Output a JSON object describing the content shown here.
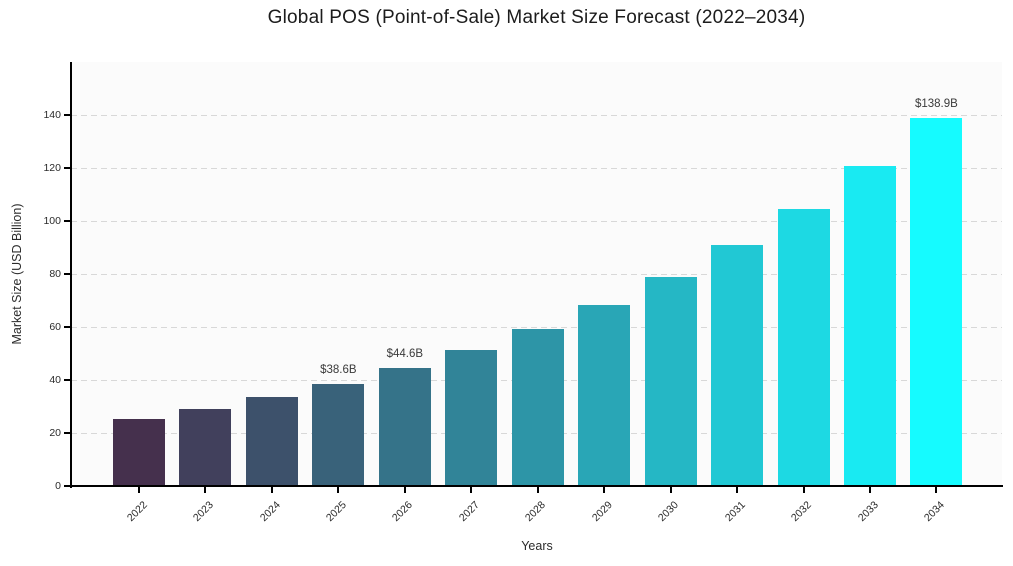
{
  "chart_data": {
    "type": "bar",
    "title": "Global POS (Point-of-Sale) Market Size Forecast (2022–2034)",
    "xlabel": "Years",
    "ylabel": "Market Size (USD Billion)",
    "categories": [
      "2022",
      "2023",
      "2024",
      "2025",
      "2026",
      "2027",
      "2028",
      "2029",
      "2030",
      "2031",
      "2032",
      "2033",
      "2034"
    ],
    "values": [
      25.2,
      29.0,
      33.5,
      38.6,
      44.6,
      51.4,
      59.3,
      68.3,
      78.8,
      90.8,
      104.7,
      120.7,
      138.9
    ],
    "bar_colors": [
      "#45304D",
      "#41405C",
      "#3D516B",
      "#39627A",
      "#357389",
      "#318498",
      "#2D95A7",
      "#29A6B6",
      "#25B7C5",
      "#21C8D4",
      "#1DD9E3",
      "#19EAF2",
      "#15FBFF"
    ],
    "annotations": [
      {
        "index": 3,
        "text": "$38.6B"
      },
      {
        "index": 4,
        "text": "$44.6B"
      },
      {
        "index": 12,
        "text": "$138.9B"
      }
    ],
    "yticks": [
      0,
      20,
      40,
      60,
      80,
      100,
      120,
      140
    ],
    "ylim": [
      0,
      160
    ],
    "grid": "horizontal-dashed",
    "legend": "none"
  },
  "colors": {
    "figure_background": "#ffffff",
    "plot_background": "#fbfbfb",
    "grid": "#d8d8d8",
    "axis": "#000000",
    "tick_text": "#2b2b2b",
    "annotation_text": "#3a3a3a",
    "title_text": "#1c1c1c"
  }
}
